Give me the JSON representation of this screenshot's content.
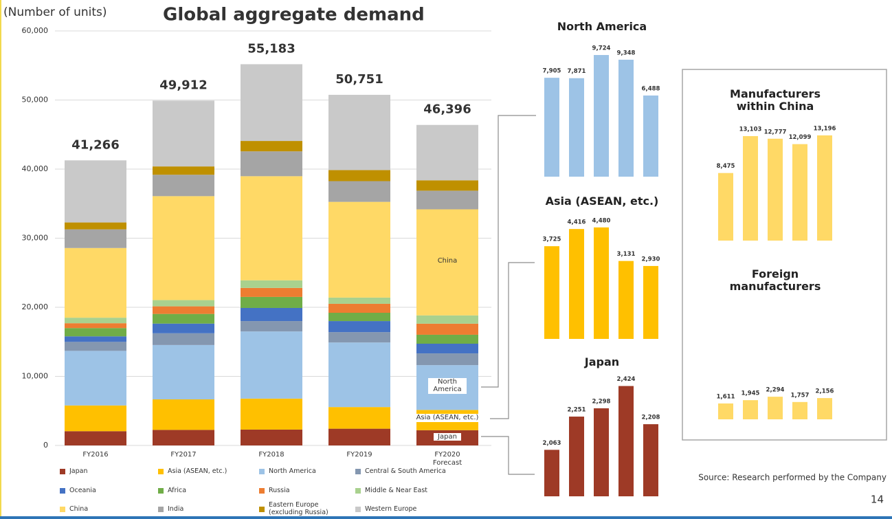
{
  "chart_data": [
    {
      "type": "stacked_bar",
      "title": "Global aggregate demand",
      "y_axis_label": "(Number of units)",
      "categories": [
        "FY2016",
        "FY2017",
        "FY2018",
        "FY2019",
        "FY2020 Forecast"
      ],
      "ylim": [
        0,
        60000
      ],
      "yticks": [
        0,
        {
          "value": 10000,
          "label": "10,000"
        },
        {
          "value": 20000,
          "label": "20,000"
        },
        {
          "value": 30000,
          "label": "30,000"
        },
        {
          "value": 40000,
          "label": "40,000"
        },
        {
          "value": 50000,
          "label": "50,000"
        },
        {
          "value": 60000,
          "label": "60,000"
        }
      ],
      "grid": true,
      "series": [
        {
          "name": "Japan",
          "color": "#9e3a26",
          "values": [
            2063,
            2251,
            2298,
            2424,
            2208
          ]
        },
        {
          "name": "Asia (ASEAN, etc.)",
          "color": "#ffc000",
          "values": [
            3725,
            4416,
            4480,
            3131,
            2930
          ]
        },
        {
          "name": "North America",
          "color": "#9dc3e6",
          "values": [
            7905,
            7871,
            9724,
            9348,
            6488
          ]
        },
        {
          "name": "Central & South America",
          "color": "#8497b0",
          "values": [
            1300,
            1700,
            1500,
            1500,
            1700
          ]
        },
        {
          "name": "Oceania",
          "color": "#4472c4",
          "values": [
            800,
            1400,
            1900,
            1600,
            1400
          ]
        },
        {
          "name": "Africa",
          "color": "#70ad47",
          "values": [
            1200,
            1400,
            1600,
            1200,
            1300
          ]
        },
        {
          "name": "Russia",
          "color": "#ed7d31",
          "values": [
            700,
            1100,
            1300,
            1300,
            1600
          ]
        },
        {
          "name": "Middle & Near East",
          "color": "#a9d18e",
          "values": [
            800,
            900,
            1100,
            900,
            1200
          ]
        },
        {
          "name": "China",
          "color": "#ffd966",
          "values": [
            10086,
            15048,
            15071,
            13856,
            15352
          ]
        },
        {
          "name": "India",
          "color": "#a5a5a5",
          "values": [
            2700,
            3100,
            3600,
            3000,
            2700
          ]
        },
        {
          "name": "Eastern Europe (excluding Russia)",
          "color": "#bf9000",
          "values": [
            1000,
            1200,
            1500,
            1600,
            1500
          ]
        },
        {
          "name": "Western Europe",
          "color": "#c9c9c9",
          "values": [
            8987,
            9526,
            11110,
            10892,
            8018
          ]
        }
      ],
      "totals": {
        "values": [
          41266,
          49912,
          55183,
          50751,
          46396
        ],
        "value_labels": [
          "41,266",
          "49,912",
          "55,183",
          "50,751",
          "46,396"
        ]
      },
      "annotations": [
        "China",
        "North America",
        "Asia (ASEAN, etc.)",
        "Japan"
      ]
    },
    {
      "type": "bar",
      "title": "North America",
      "color": "#9dc3e6",
      "ylim": [
        0,
        10000
      ],
      "values": [
        7905,
        7871,
        9724,
        9348,
        6488
      ],
      "value_labels": [
        "7,905",
        "7,871",
        "9,724",
        "9,348",
        "6,488"
      ]
    },
    {
      "type": "bar",
      "title": "Asia (ASEAN, etc.)",
      "color": "#ffc000",
      "ylim": [
        0,
        5000
      ],
      "values": [
        3725,
        4416,
        4480,
        3131,
        2930
      ],
      "value_labels": [
        "3,725",
        "4,416",
        "4,480",
        "3,131",
        "2,930"
      ]
    },
    {
      "type": "bar",
      "title": "Japan",
      "color": "#9e3a26",
      "ylim": [
        1800,
        2500
      ],
      "values": [
        2063,
        2251,
        2298,
        2424,
        2208
      ],
      "value_labels": [
        "2,063",
        "2,251",
        "2,298",
        "2,424",
        "2,208"
      ]
    },
    {
      "type": "bar",
      "title": "Manufacturers within China",
      "color": "#ffd966",
      "ylim": [
        0,
        15000
      ],
      "values": [
        8475,
        13103,
        12777,
        12099,
        13196
      ],
      "value_labels": [
        "8,475",
        "13,103",
        "12,777",
        "12,099",
        "13,196"
      ]
    },
    {
      "type": "bar",
      "title": "Foreign manufacturers",
      "color": "#ffd966",
      "ylim": [
        0,
        3000
      ],
      "values": [
        1611,
        1945,
        2294,
        1757,
        2156
      ],
      "value_labels": [
        "1,611",
        "1,945",
        "2,294",
        "1,757",
        "2,156"
      ]
    }
  ],
  "footer": {
    "source": "Source: Research performed by the Company",
    "page_number": "14"
  }
}
